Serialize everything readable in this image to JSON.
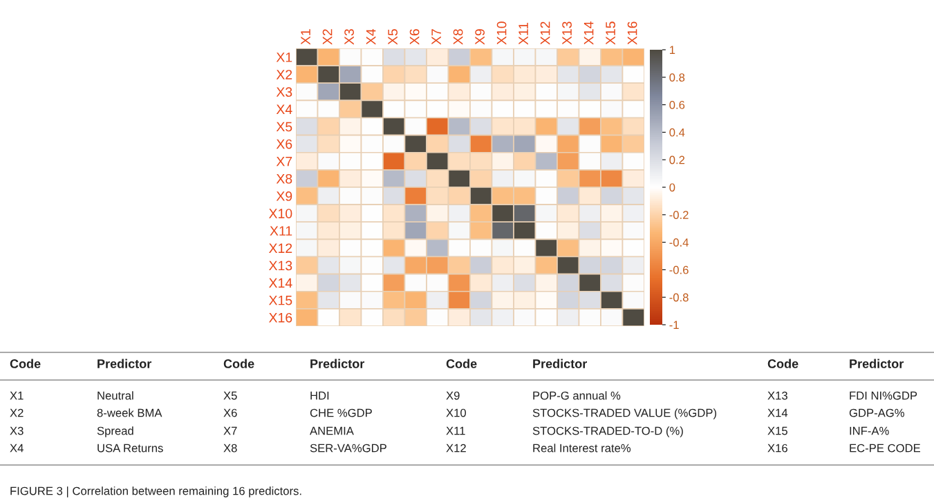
{
  "chart_data": {
    "type": "heatmap",
    "categories": [
      "X1",
      "X2",
      "X3",
      "X4",
      "X5",
      "X6",
      "X7",
      "X8",
      "X9",
      "X10",
      "X11",
      "X12",
      "X13",
      "X14",
      "X15",
      "X16"
    ],
    "y_categories": [
      "X1",
      "X2",
      "X3",
      "X4",
      "X5",
      "X6",
      "X7",
      "X8",
      "X9",
      "X10",
      "X11",
      "X12",
      "X13",
      "X14",
      "X15",
      "X16"
    ],
    "cells": [
      [
        1,
        -0.35,
        0.02,
        0.01,
        0.2,
        0.15,
        -0.08,
        0.3,
        -0.3,
        0.05,
        0.05,
        0.05,
        -0.25,
        -0.05,
        -0.3,
        -0.35
      ],
      [
        -0.35,
        1,
        0.5,
        0.01,
        -0.2,
        -0.15,
        0.03,
        -0.35,
        0.1,
        -0.15,
        -0.1,
        -0.08,
        0.15,
        0.25,
        0.15,
        0
      ],
      [
        0.02,
        0.5,
        1,
        -0.25,
        -0.05,
        -0.02,
        0.01,
        -0.08,
        0.02,
        -0.08,
        -0.07,
        0.01,
        0.05,
        0.15,
        0.03,
        -0.12
      ],
      [
        0.01,
        0.01,
        -0.25,
        1,
        0,
        0.01,
        0,
        -0.02,
        0.02,
        0,
        0,
        0,
        0.01,
        0,
        0.03,
        0
      ],
      [
        0.2,
        -0.2,
        -0.05,
        0,
        1,
        0.02,
        -0.7,
        0.4,
        0.2,
        -0.12,
        -0.12,
        -0.35,
        0.15,
        -0.45,
        -0.3,
        -0.15
      ],
      [
        0.15,
        -0.15,
        -0.02,
        0.01,
        0.02,
        1,
        -0.2,
        0.2,
        -0.6,
        0.45,
        0.5,
        -0.03,
        -0.4,
        0.02,
        -0.35,
        -0.25
      ],
      [
        -0.08,
        0.03,
        0.01,
        0,
        -0.7,
        -0.2,
        1,
        -0.15,
        -0.15,
        -0.05,
        -0.2,
        0.4,
        -0.45,
        0.02,
        0.1,
        0.01
      ],
      [
        0.3,
        -0.35,
        -0.08,
        -0.02,
        0.4,
        0.2,
        -0.15,
        1,
        -0.2,
        0.08,
        0.04,
        0.01,
        -0.25,
        -0.5,
        -0.55,
        -0.08
      ],
      [
        -0.3,
        0.1,
        0.02,
        0.02,
        0.2,
        -0.6,
        -0.15,
        -0.2,
        1,
        -0.3,
        -0.3,
        0.01,
        0.3,
        -0.1,
        0.25,
        0.15
      ],
      [
        0.05,
        -0.15,
        -0.08,
        0,
        -0.12,
        0.45,
        -0.05,
        0.08,
        -0.3,
        1,
        0.85,
        0.05,
        -0.1,
        0.1,
        -0.05,
        0.08
      ],
      [
        0.05,
        -0.1,
        -0.07,
        0,
        -0.12,
        0.5,
        -0.2,
        0.04,
        -0.3,
        0.85,
        1,
        0.01,
        -0.07,
        0.2,
        -0.07,
        0.03
      ],
      [
        0.05,
        -0.08,
        0.01,
        0,
        -0.35,
        -0.03,
        0.4,
        0.01,
        0.01,
        0.05,
        0.01,
        1,
        -0.3,
        -0.05,
        -0.02,
        0
      ],
      [
        -0.25,
        0.15,
        0.05,
        0.01,
        0.15,
        -0.4,
        -0.45,
        -0.25,
        0.3,
        -0.1,
        -0.07,
        -0.3,
        1,
        0.25,
        0.25,
        0.1
      ],
      [
        -0.05,
        0.25,
        0.15,
        0,
        -0.45,
        0.02,
        0.02,
        -0.5,
        -0.1,
        0.1,
        0.2,
        -0.05,
        0.25,
        1,
        0.2,
        0.02
      ],
      [
        -0.3,
        0.15,
        0.03,
        0.03,
        -0.3,
        -0.35,
        0.1,
        -0.55,
        0.25,
        -0.05,
        -0.07,
        -0.02,
        0.25,
        0.2,
        1,
        0.03
      ],
      [
        -0.35,
        0,
        -0.12,
        0,
        -0.15,
        -0.25,
        0.01,
        -0.08,
        0.15,
        0.08,
        0.03,
        0,
        0.1,
        0.02,
        0.03,
        1
      ]
    ],
    "clim": [
      -1,
      1
    ],
    "cticks": [
      -1,
      -0.8,
      -0.6,
      -0.4,
      -0.2,
      0,
      0.2,
      0.4,
      0.6,
      0.8,
      1
    ],
    "annotations": [
      "Code",
      "Predictor",
      "Code",
      "Predictor",
      "Code",
      "Predictor",
      "Code",
      "Predictor",
      "X1",
      "Neutral",
      "X5",
      "HDI",
      "X9",
      "POP-G annual %",
      "X13",
      "FDI NI%GDP",
      "X2",
      "8-week BMA",
      "X6",
      "CHE %GDP",
      "X10",
      "STOCKS-TRADED VALUE (%GDP)",
      "X14",
      "GDP-AG%",
      "X3",
      "Spread",
      "X7",
      "ANEMIA",
      "X11",
      "STOCKS-TRADED-TO-D (%)",
      "X15",
      "INF-A%",
      "X4",
      "USA Returns",
      "X8",
      "SER-VA%GDP",
      "X12",
      "Real Interest rate%",
      "X16",
      "EC-PE CODE",
      "FIGURE 3 | Correlation between remaining 16 predictors."
    ]
  }
}
